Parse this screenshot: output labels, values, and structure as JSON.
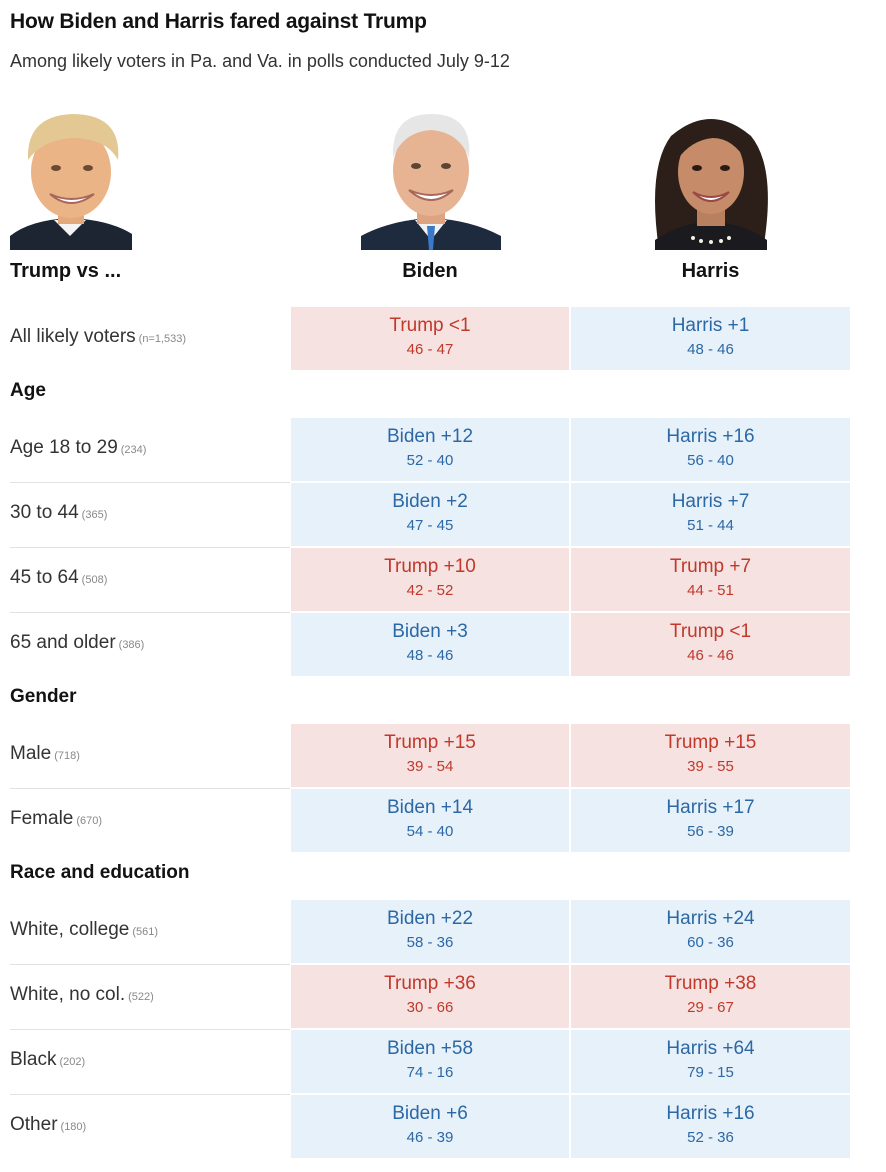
{
  "header": {
    "title": "How Biden and Harris fared against Trump",
    "subtitle": "Among likely voters in Pa. and Va. in polls conducted July 9-12"
  },
  "columns": {
    "row_header": "Trump vs ...",
    "biden": "Biden",
    "harris": "Harris"
  },
  "colors": {
    "dem_bg": "#e7f1fa",
    "dem_text": "#2b68a5",
    "rep_bg": "#f5e2e1",
    "rep_text": "#c0392b"
  },
  "chart_data": {
    "type": "table",
    "title": "How Biden and Harris fared against Trump",
    "subtitle": "Among likely voters in Pa. and Va. in polls conducted July 9-12",
    "columns": [
      "Biden",
      "Harris"
    ],
    "sections": [
      {
        "name": "",
        "rows": [
          {
            "label": "All likely voters",
            "n": "(n=1,533)",
            "biden": {
              "margin": "Trump <1",
              "score": "46 - 47",
              "leader": "rep"
            },
            "harris": {
              "margin": "Harris +1",
              "score": "48 - 46",
              "leader": "dem"
            }
          }
        ]
      },
      {
        "name": "Age",
        "rows": [
          {
            "label": "Age 18 to 29",
            "n": "(234)",
            "biden": {
              "margin": "Biden +12",
              "score": "52 - 40",
              "leader": "dem"
            },
            "harris": {
              "margin": "Harris +16",
              "score": "56 - 40",
              "leader": "dem"
            }
          },
          {
            "label": "30 to 44",
            "n": "(365)",
            "biden": {
              "margin": "Biden +2",
              "score": "47 - 45",
              "leader": "dem"
            },
            "harris": {
              "margin": "Harris +7",
              "score": "51 - 44",
              "leader": "dem"
            }
          },
          {
            "label": "45 to 64",
            "n": "(508)",
            "biden": {
              "margin": "Trump +10",
              "score": "42 - 52",
              "leader": "rep"
            },
            "harris": {
              "margin": "Trump +7",
              "score": "44 - 51",
              "leader": "rep"
            }
          },
          {
            "label": "65 and older",
            "n": "(386)",
            "biden": {
              "margin": "Biden +3",
              "score": "48 - 46",
              "leader": "dem"
            },
            "harris": {
              "margin": "Trump <1",
              "score": "46 - 46",
              "leader": "rep"
            }
          }
        ]
      },
      {
        "name": "Gender",
        "rows": [
          {
            "label": "Male",
            "n": "(718)",
            "biden": {
              "margin": "Trump +15",
              "score": "39 - 54",
              "leader": "rep"
            },
            "harris": {
              "margin": "Trump +15",
              "score": "39 - 55",
              "leader": "rep"
            }
          },
          {
            "label": "Female",
            "n": "(670)",
            "biden": {
              "margin": "Biden +14",
              "score": "54 - 40",
              "leader": "dem"
            },
            "harris": {
              "margin": "Harris +17",
              "score": "56 - 39",
              "leader": "dem"
            }
          }
        ]
      },
      {
        "name": "Race and education",
        "rows": [
          {
            "label": "White, college",
            "n": "(561)",
            "biden": {
              "margin": "Biden +22",
              "score": "58 - 36",
              "leader": "dem"
            },
            "harris": {
              "margin": "Harris +24",
              "score": "60 - 36",
              "leader": "dem"
            }
          },
          {
            "label": "White, no col.",
            "n": "(522)",
            "biden": {
              "margin": "Trump +36",
              "score": "30 - 66",
              "leader": "rep"
            },
            "harris": {
              "margin": "Trump +38",
              "score": "29 - 67",
              "leader": "rep"
            }
          },
          {
            "label": "Black",
            "n": "(202)",
            "biden": {
              "margin": "Biden +58",
              "score": "74 - 16",
              "leader": "dem"
            },
            "harris": {
              "margin": "Harris +64",
              "score": "79 - 15",
              "leader": "dem"
            }
          },
          {
            "label": "Other",
            "n": "(180)",
            "biden": {
              "margin": "Biden +6",
              "score": "46 - 39",
              "leader": "dem"
            },
            "harris": {
              "margin": "Harris +16",
              "score": "52 - 36",
              "leader": "dem"
            }
          }
        ]
      }
    ]
  }
}
